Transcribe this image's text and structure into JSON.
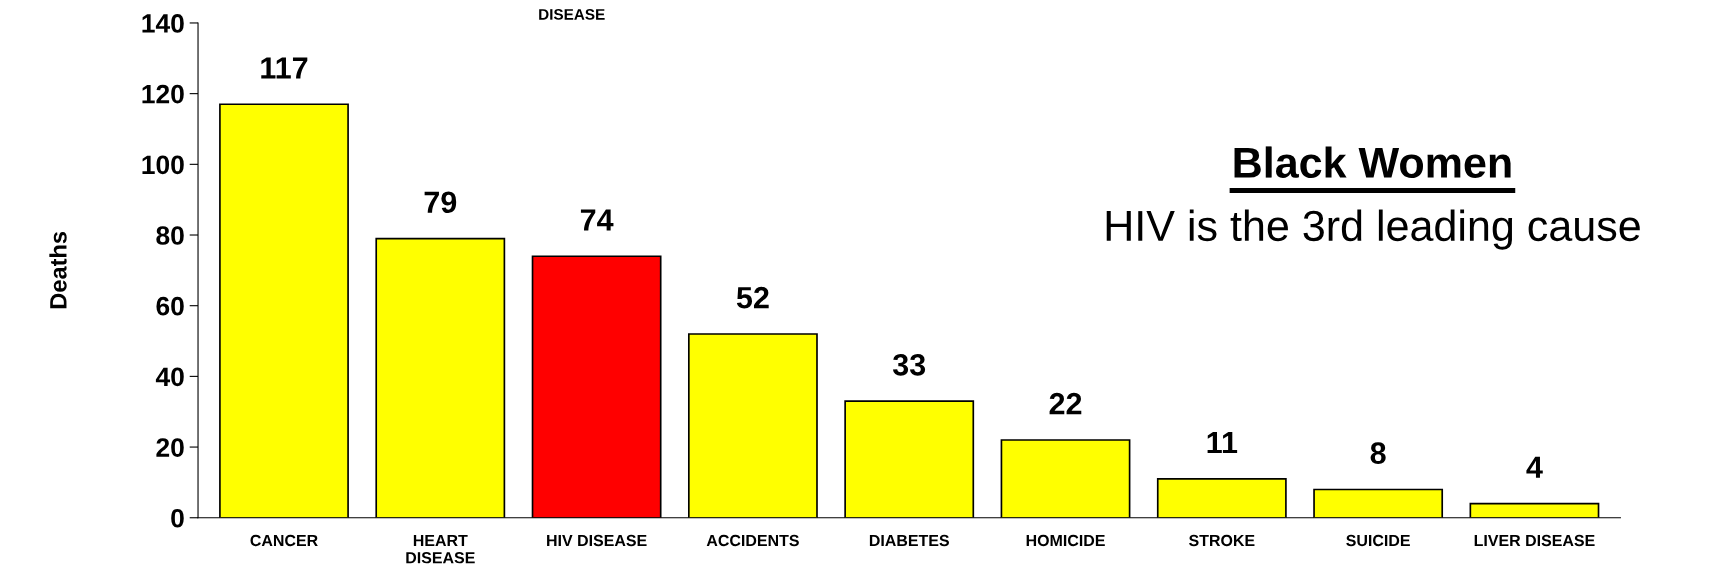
{
  "chart_data": {
    "type": "bar",
    "title": "Black Women",
    "ylabel": "Deaths",
    "categories": [
      "CANCER",
      "HEART\nDISEASE",
      "HIV DISEASE",
      "ACCIDENTS",
      "DIABETES",
      "HOMICIDE",
      "STROKE",
      "SUICIDE",
      "LIVER DISEASE"
    ],
    "values": [
      117,
      79,
      74,
      52,
      33,
      22,
      11,
      8,
      4
    ],
    "colors": [
      "#ffff00",
      "#ffff00",
      "#ff0000",
      "#ffff00",
      "#ffff00",
      "#ffff00",
      "#ffff00",
      "#ffff00",
      "#ffff00"
    ],
    "data_labels": true,
    "ylim": [
      0,
      140
    ],
    "yticks": [
      0,
      20,
      40,
      60,
      80,
      100,
      120,
      140
    ],
    "grid": false,
    "annotations": [
      "HIV is the 3rd leading cause",
      "DISEASE"
    ]
  }
}
